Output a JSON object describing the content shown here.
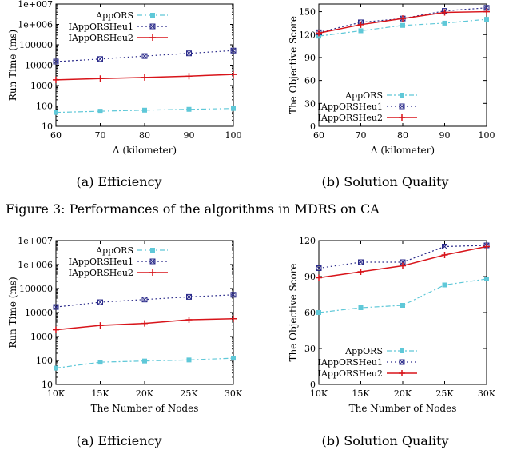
{
  "figure_caption": "Figure 3: Performances of the algorithms in MDRS on CA",
  "charts": [
    {
      "caption": "(a)  Efficiency",
      "chart_data": {
        "type": "line",
        "xlabel": "Δ (kilometer)",
        "ylabel": "Run Time (ms)",
        "yscale": "log",
        "x": [
          60,
          70,
          80,
          90,
          100
        ],
        "xticks": [
          "60",
          "70",
          "80",
          "90",
          "100"
        ],
        "yticks": [
          "10",
          "100",
          "1000",
          "10000",
          "100000",
          "1e+006",
          "1e+007"
        ],
        "ylim": [
          10,
          10000000
        ],
        "legend": "top-right",
        "series": [
          {
            "name": "AppORS",
            "values": [
              48,
              55,
              62,
              68,
              75
            ],
            "color": "#5fc8d8"
          },
          {
            "name": "IAppORSHeu1",
            "values": [
              15000,
              20000,
              28000,
              38000,
              52000
            ],
            "color": "#2a2a8a"
          },
          {
            "name": "IAppORSHeu2",
            "values": [
              1900,
              2200,
              2500,
              2900,
              3500
            ],
            "color": "#d8141a"
          }
        ]
      }
    },
    {
      "caption": "(b)  Solution Quality",
      "chart_data": {
        "type": "line",
        "xlabel": "Δ (kilometer)",
        "ylabel": "The Objective Score",
        "yscale": "linear",
        "x": [
          60,
          70,
          80,
          90,
          100
        ],
        "xticks": [
          "60",
          "70",
          "80",
          "90",
          "100"
        ],
        "yticks": [
          "0",
          "30",
          "60",
          "90",
          "120",
          "150"
        ],
        "ylim": [
          0,
          160
        ],
        "legend": "bottom-right",
        "series": [
          {
            "name": "AppORS",
            "values": [
              118,
              125,
              132,
              135,
              140
            ],
            "color": "#5fc8d8"
          },
          {
            "name": "IAppORSHeu1",
            "values": [
              123,
              136,
              141,
              151,
              155
            ],
            "color": "#2a2a8a"
          },
          {
            "name": "IAppORSHeu2",
            "values": [
              122,
              133,
              141,
              149,
              150
            ],
            "color": "#d8141a"
          }
        ]
      }
    },
    {
      "caption": "(a)  Efficiency",
      "chart_data": {
        "type": "line",
        "xlabel": "The Number of Nodes",
        "ylabel": "Run Time (ms)",
        "yscale": "log",
        "x": [
          10,
          15,
          20,
          25,
          30
        ],
        "xticks": [
          "10K",
          "15K",
          "20K",
          "25K",
          "30K"
        ],
        "yticks": [
          "10",
          "100",
          "1000",
          "10000",
          "100000",
          "1e+006",
          "1e+007"
        ],
        "ylim": [
          10,
          10000000
        ],
        "legend": "top-right",
        "series": [
          {
            "name": "AppORS",
            "values": [
              48,
              85,
              95,
              105,
              125
            ],
            "color": "#5fc8d8"
          },
          {
            "name": "IAppORSHeu1",
            "values": [
              17000,
              27000,
              35000,
              45000,
              55000
            ],
            "color": "#2a2a8a"
          },
          {
            "name": "IAppORSHeu2",
            "values": [
              1900,
              2900,
              3500,
              5000,
              5500
            ],
            "color": "#d8141a"
          }
        ]
      }
    },
    {
      "caption": "(b)  Solution Quality",
      "chart_data": {
        "type": "line",
        "xlabel": "The Number of Nodes",
        "ylabel": "The Objective Score",
        "yscale": "linear",
        "x": [
          10,
          15,
          20,
          25,
          30
        ],
        "xticks": [
          "10K",
          "15K",
          "20K",
          "25K",
          "30K"
        ],
        "yticks": [
          "0",
          "30",
          "60",
          "90",
          "120"
        ],
        "ylim": [
          0,
          120
        ],
        "legend": "bottom-right",
        "series": [
          {
            "name": "AppORS",
            "values": [
              60,
              64,
              66,
              83,
              88
            ],
            "color": "#5fc8d8"
          },
          {
            "name": "IAppORSHeu1",
            "values": [
              97,
              102,
              102,
              115,
              116
            ],
            "color": "#2a2a8a"
          },
          {
            "name": "IAppORSHeu2",
            "values": [
              89,
              94,
              99,
              108,
              115
            ],
            "color": "#d8141a"
          }
        ]
      }
    }
  ]
}
